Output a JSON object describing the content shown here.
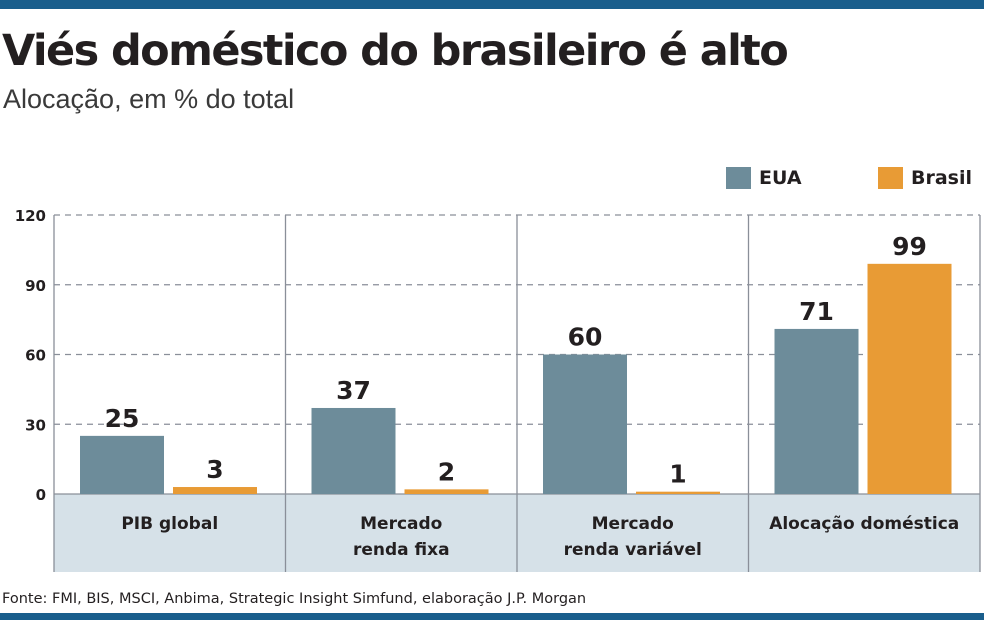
{
  "title": "Viés doméstico do brasileiro é alto",
  "subtitle": "Alocação, em % do total",
  "legend": [
    {
      "label": "EUA",
      "color": "#6d8c9a"
    },
    {
      "label": "Brasil",
      "color": "#e89b35"
    }
  ],
  "source": "Fonte: FMI, BIS, MSCI, Anbima, Strategic Insight Simfund, elaboração J.P. Morgan",
  "colors": {
    "eua": "#6d8c9a",
    "brasil": "#e89b35",
    "category_band": "#d6e1e8",
    "accent_bar": "#1a5e8c"
  },
  "chart_data": {
    "type": "bar",
    "title": "Viés doméstico do brasileiro é alto",
    "subtitle": "Alocação, em % do total",
    "categories": [
      [
        "PIB global"
      ],
      [
        "Mercado",
        "renda fixa"
      ],
      [
        "Mercado",
        "renda variável"
      ],
      [
        "Alocação doméstica"
      ]
    ],
    "series": [
      {
        "name": "EUA",
        "values": [
          25,
          37,
          60,
          71
        ]
      },
      {
        "name": "Brasil",
        "values": [
          3,
          2,
          1,
          99
        ]
      }
    ],
    "data_labels": [
      [
        "25",
        "37",
        "60",
        "71"
      ],
      [
        "3",
        "2",
        "1",
        "99"
      ]
    ],
    "yticks": [
      0,
      30,
      60,
      90,
      120
    ],
    "ylim": [
      0,
      120
    ],
    "grid": "dashed horizontal",
    "legend_position": "top-right"
  }
}
